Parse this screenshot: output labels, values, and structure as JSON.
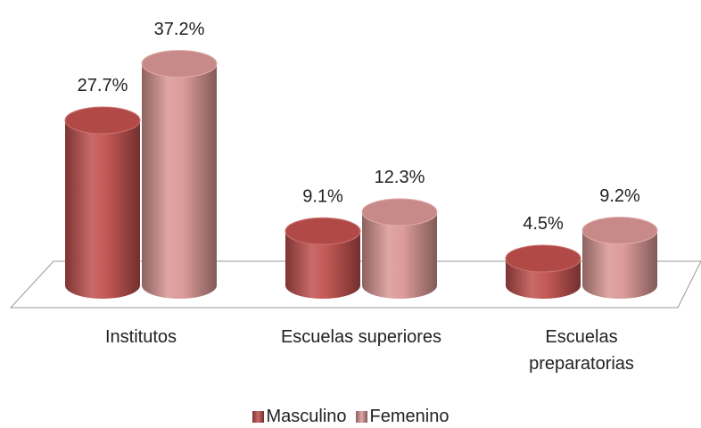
{
  "chart_data": {
    "type": "bar3d-cylinder",
    "categories": [
      "Institutos",
      "Escuelas superiores",
      "Escuelas preparatorias"
    ],
    "series": [
      {
        "name": "Masculino",
        "color": "#c0504d",
        "values": [
          27.7,
          9.1,
          4.5
        ],
        "value_labels": [
          "27.7%",
          "9.1%",
          "4.5%"
        ]
      },
      {
        "name": "Femenino",
        "color": "#d99694",
        "values": [
          37.2,
          12.3,
          9.2
        ],
        "value_labels": [
          "37.2%",
          "12.3%",
          "9.2%"
        ]
      }
    ],
    "legend": "bottom"
  }
}
